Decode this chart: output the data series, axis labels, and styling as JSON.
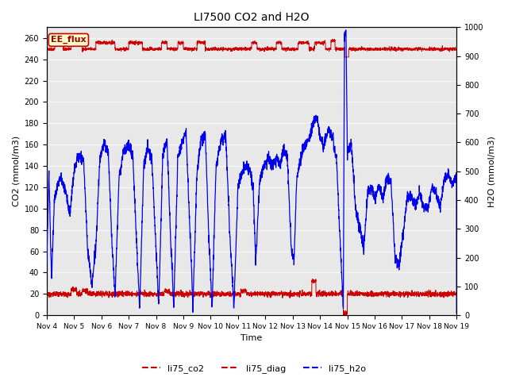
{
  "title": "LI7500 CO2 and H2O",
  "xlabel": "Time",
  "ylabel_left": "CO2 (mmol/m3)",
  "ylabel_right": "H2O (mmol/m3)",
  "ylim_left": [
    0,
    270
  ],
  "ylim_right": [
    0,
    1000
  ],
  "xtick_labels": [
    "Nov 4",
    "Nov 5",
    "Nov 6",
    "Nov 7",
    "Nov 8",
    "Nov 9",
    "Nov 10",
    "Nov 11",
    "Nov 12",
    "Nov 13",
    "Nov 14",
    "Nov 15",
    "Nov 16",
    "Nov 17",
    "Nov 18",
    "Nov 19"
  ],
  "fig_bg_color": "#ffffff",
  "plot_bg_color": "#e8e8e8",
  "grid_color": "#f5f5f5",
  "legend_label_co2": "li75_co2",
  "legend_label_diag": "li75_diag",
  "legend_label_h2o": "li75_h2o",
  "color_co2": "#cc0000",
  "color_diag": "#cc0000",
  "color_h2o": "#0000ee",
  "annotation_text": "EE_flux",
  "annotation_bg": "#ffffcc",
  "annotation_border": "#cc0000"
}
